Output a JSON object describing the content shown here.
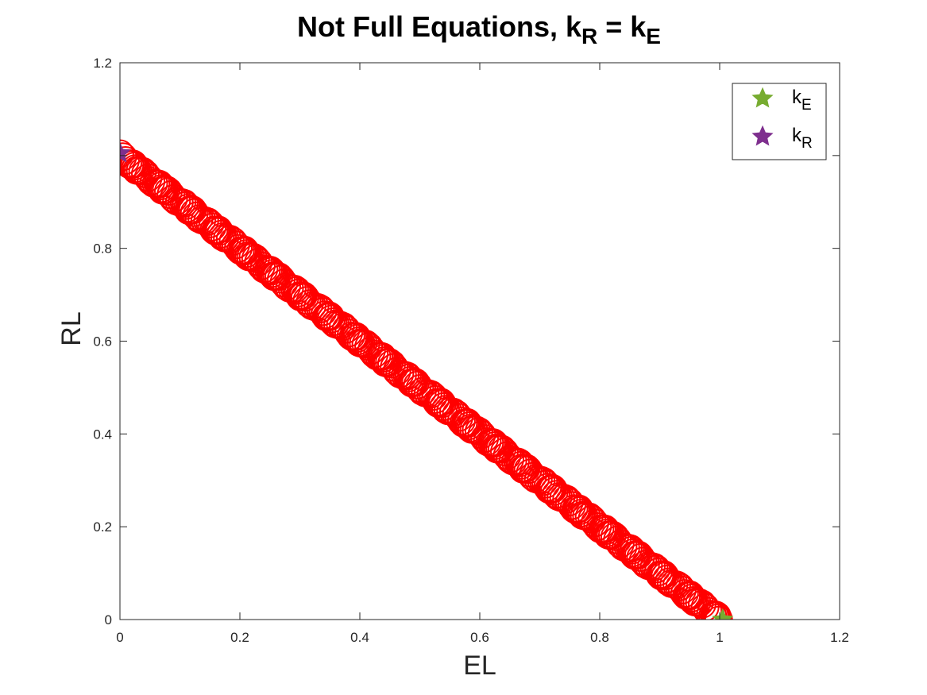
{
  "chart_data": {
    "type": "scatter",
    "title": {
      "main": "Not Full Equations, k",
      "sub1": "R",
      "mid": " = k",
      "sub2": "E"
    },
    "xlabel": "EL",
    "ylabel": "RL",
    "xlim": [
      0,
      1.2
    ],
    "ylim": [
      0,
      1.2
    ],
    "xticks": [
      0,
      0.2,
      0.4,
      0.6,
      0.8,
      1,
      1.2
    ],
    "yticks": [
      0,
      0.2,
      0.4,
      0.6,
      0.8,
      1.2
    ],
    "xtick_labels": [
      "0",
      "0.2",
      "0.4",
      "0.6",
      "0.8",
      "1",
      "1.2"
    ],
    "ytick_labels": [
      "0",
      "0.2",
      "0.4",
      "0.6",
      "0.8",
      "1.2"
    ],
    "grid": false,
    "box": true,
    "series": [
      {
        "marker": "circle",
        "filled": false,
        "color": "#ff0000",
        "relation": "RL = 1 - EL",
        "x_range": [
          0,
          1
        ]
      },
      {
        "name": "E",
        "marker": "star",
        "color": "#77ac30",
        "x": [
          1.005
        ],
        "y": [
          0.0
        ]
      },
      {
        "name": "R",
        "marker": "star",
        "color": "#7e2f8e",
        "x": [
          0.0
        ],
        "y": [
          1.005
        ]
      }
    ],
    "legend": {
      "position": "top-right",
      "entries": [
        {
          "base": "k",
          "sub": "E",
          "color": "#77ac30"
        },
        {
          "base": "k",
          "sub": "R",
          "color": "#7e2f8e"
        }
      ]
    }
  },
  "colors": {
    "axis": "#262626",
    "circles": "#ff0000",
    "kE": "#77ac30",
    "kR": "#7e2f8e"
  }
}
